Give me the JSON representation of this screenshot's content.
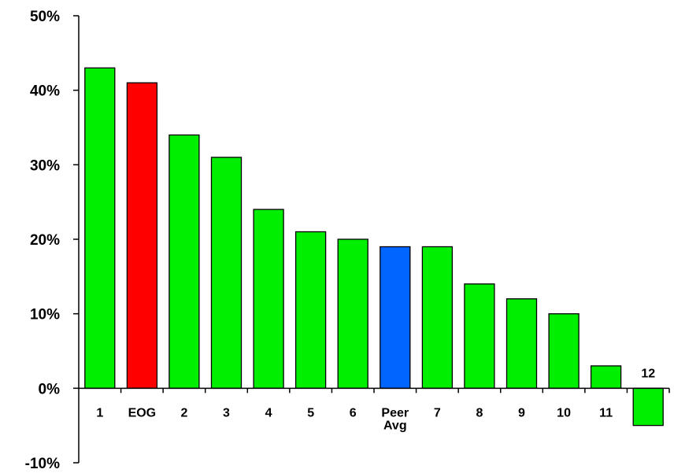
{
  "chart_data": {
    "type": "bar",
    "title": "",
    "xlabel": "",
    "ylabel": "",
    "ylim": [
      -10,
      50
    ],
    "y_ticks": [
      {
        "value": 50,
        "label": "50%"
      },
      {
        "value": 40,
        "label": "40%"
      },
      {
        "value": 30,
        "label": "30%"
      },
      {
        "value": 20,
        "label": "20%"
      },
      {
        "value": 10,
        "label": "10%"
      },
      {
        "value": 0,
        "label": "0%"
      },
      {
        "value": -10,
        "label": "-10%"
      }
    ],
    "grid": false,
    "legend": "none",
    "categories": [
      {
        "label": [
          "1"
        ],
        "value": 43,
        "color": "#00ee00"
      },
      {
        "label": [
          "EOG"
        ],
        "value": 41,
        "color": "#ff0000"
      },
      {
        "label": [
          "2"
        ],
        "value": 34,
        "color": "#00ee00"
      },
      {
        "label": [
          "3"
        ],
        "value": 31,
        "color": "#00ee00"
      },
      {
        "label": [
          "4"
        ],
        "value": 24,
        "color": "#00ee00"
      },
      {
        "label": [
          "5"
        ],
        "value": 21,
        "color": "#00ee00"
      },
      {
        "label": [
          "6"
        ],
        "value": 20,
        "color": "#00ee00"
      },
      {
        "label": [
          "Peer",
          "Avg"
        ],
        "value": 19,
        "color": "#0066ff"
      },
      {
        "label": [
          "7"
        ],
        "value": 19,
        "color": "#00ee00"
      },
      {
        "label": [
          "8"
        ],
        "value": 14,
        "color": "#00ee00"
      },
      {
        "label": [
          "9"
        ],
        "value": 12,
        "color": "#00ee00"
      },
      {
        "label": [
          "10"
        ],
        "value": 10,
        "color": "#00ee00"
      },
      {
        "label": [
          "11"
        ],
        "value": 3,
        "color": "#00ee00"
      },
      {
        "label": [
          "12"
        ],
        "value": -5,
        "color": "#00ee00"
      }
    ]
  }
}
